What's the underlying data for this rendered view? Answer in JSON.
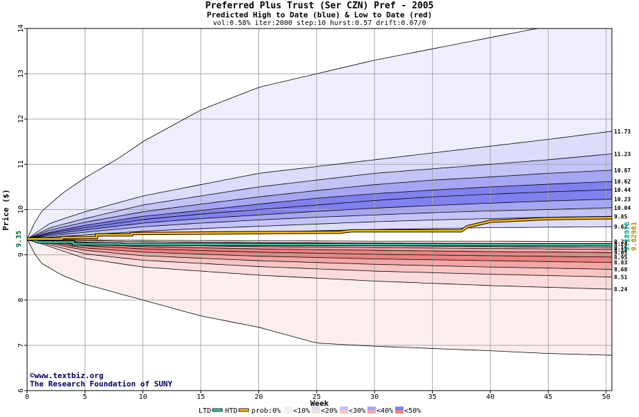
{
  "title": "Preferred Plus Trust (Ser CZN) Pref - 2005",
  "subtitle": "Predicted High to Date (blue) &  Low to Date (red)",
  "params": "vol:0.58% iter:2000 step:10 hurst:0.57 drift:0.07/0",
  "credit_line1": "©www.textbiz.org",
  "credit_line2": "The Research Foundation of SUNY",
  "colors": {
    "ltd": "#33ccaa",
    "htd": "#ffbb00",
    "blue_10": "#eeeefd",
    "blue_20": "#dcdcfb",
    "blue_30": "#c4c4f8",
    "blue_40": "#a6a6f4",
    "blue_50": "#8080ee",
    "red_10": "#fdeeee",
    "red_20": "#fbdcdc",
    "red_30": "#f8c4c4",
    "red_40": "#f4a6a6",
    "red_50": "#ee8080",
    "grid": "#a8a8a8"
  },
  "chart_data": {
    "type": "area",
    "title": "Preferred Plus Trust (Ser CZN) Pref - 2005",
    "xlabel": "Week",
    "ylabel": "Price ($)",
    "xlim": [
      0,
      50.5
    ],
    "ylim": [
      6,
      14
    ],
    "x_ticks": [
      0,
      5,
      10,
      15,
      20,
      25,
      30,
      35,
      40,
      45,
      50
    ],
    "y_ticks": [
      6,
      7,
      8,
      9,
      10,
      11,
      12,
      13,
      14
    ],
    "grid": true,
    "start_price": 9.35,
    "start_label": "9.35",
    "high_percentile_curves": [
      {
        "end": 14.2,
        "points": [
          [
            0,
            9.35
          ],
          [
            1,
            9.9
          ],
          [
            3,
            10.35
          ],
          [
            5,
            10.7
          ],
          [
            8,
            11.15
          ],
          [
            10,
            11.5
          ],
          [
            15,
            12.2
          ],
          [
            18,
            12.5
          ],
          [
            20,
            12.7
          ],
          [
            25,
            13.0
          ],
          [
            30,
            13.3
          ],
          [
            35,
            13.55
          ],
          [
            40,
            13.8
          ],
          [
            45,
            14.05
          ],
          [
            50.5,
            14.2
          ]
        ]
      },
      {
        "end": 11.73,
        "label": "11.73",
        "points": [
          [
            0,
            9.35
          ],
          [
            2,
            9.7
          ],
          [
            5,
            9.95
          ],
          [
            10,
            10.3
          ],
          [
            15,
            10.55
          ],
          [
            20,
            10.8
          ],
          [
            25,
            10.95
          ],
          [
            30,
            11.1
          ],
          [
            35,
            11.25
          ],
          [
            40,
            11.4
          ],
          [
            45,
            11.55
          ],
          [
            50.5,
            11.73
          ]
        ]
      },
      {
        "end": 11.23,
        "label": "11.23",
        "points": [
          [
            0,
            9.35
          ],
          [
            2,
            9.6
          ],
          [
            5,
            9.8
          ],
          [
            10,
            10.1
          ],
          [
            15,
            10.3
          ],
          [
            20,
            10.5
          ],
          [
            25,
            10.65
          ],
          [
            30,
            10.8
          ],
          [
            35,
            10.9
          ],
          [
            40,
            11.0
          ],
          [
            45,
            11.1
          ],
          [
            50.5,
            11.23
          ]
        ]
      },
      {
        "end": 10.87,
        "label": "10.87",
        "points": [
          [
            0,
            9.35
          ],
          [
            2,
            9.55
          ],
          [
            5,
            9.72
          ],
          [
            10,
            9.95
          ],
          [
            15,
            10.12
          ],
          [
            20,
            10.28
          ],
          [
            25,
            10.42
          ],
          [
            30,
            10.55
          ],
          [
            35,
            10.65
          ],
          [
            40,
            10.72
          ],
          [
            45,
            10.8
          ],
          [
            50.5,
            10.87
          ]
        ]
      },
      {
        "end": 10.62,
        "label": "10.62",
        "points": [
          [
            0,
            9.35
          ],
          [
            2,
            9.5
          ],
          [
            5,
            9.65
          ],
          [
            10,
            9.85
          ],
          [
            15,
            9.98
          ],
          [
            20,
            10.12
          ],
          [
            25,
            10.25
          ],
          [
            30,
            10.35
          ],
          [
            35,
            10.43
          ],
          [
            40,
            10.5
          ],
          [
            45,
            10.56
          ],
          [
            50.5,
            10.62
          ]
        ]
      },
      {
        "end": 10.44,
        "label": "10.44",
        "points": [
          [
            0,
            9.35
          ],
          [
            2,
            9.48
          ],
          [
            5,
            9.6
          ],
          [
            10,
            9.78
          ],
          [
            15,
            9.9
          ],
          [
            20,
            10.0
          ],
          [
            25,
            10.1
          ],
          [
            30,
            10.2
          ],
          [
            35,
            10.28
          ],
          [
            40,
            10.34
          ],
          [
            45,
            10.39
          ],
          [
            50.5,
            10.44
          ]
        ]
      },
      {
        "end": 10.23,
        "label": "10.23",
        "points": [
          [
            0,
            9.35
          ],
          [
            2,
            9.45
          ],
          [
            5,
            9.55
          ],
          [
            10,
            9.7
          ],
          [
            15,
            9.8
          ],
          [
            20,
            9.88
          ],
          [
            25,
            9.96
          ],
          [
            30,
            10.03
          ],
          [
            35,
            10.09
          ],
          [
            40,
            10.14
          ],
          [
            45,
            10.19
          ],
          [
            50.5,
            10.23
          ]
        ]
      },
      {
        "end": 10.04,
        "label": "10.04",
        "points": [
          [
            0,
            9.35
          ],
          [
            2,
            9.42
          ],
          [
            5,
            9.5
          ],
          [
            10,
            9.62
          ],
          [
            15,
            9.7
          ],
          [
            20,
            9.77
          ],
          [
            25,
            9.83
          ],
          [
            30,
            9.88
          ],
          [
            35,
            9.93
          ],
          [
            40,
            9.97
          ],
          [
            45,
            10.0
          ],
          [
            50.5,
            10.04
          ]
        ]
      },
      {
        "end": 9.85,
        "label": "9.85",
        "points": [
          [
            0,
            9.35
          ],
          [
            2,
            9.39
          ],
          [
            5,
            9.44
          ],
          [
            10,
            9.52
          ],
          [
            15,
            9.58
          ],
          [
            20,
            9.63
          ],
          [
            25,
            9.68
          ],
          [
            30,
            9.73
          ],
          [
            35,
            9.77
          ],
          [
            40,
            9.8
          ],
          [
            45,
            9.83
          ],
          [
            50.5,
            9.85
          ]
        ]
      },
      {
        "end": 9.62,
        "label": "9.62",
        "points": [
          [
            0,
            9.35
          ],
          [
            2,
            9.37
          ],
          [
            5,
            9.4
          ],
          [
            10,
            9.45
          ],
          [
            15,
            9.48
          ],
          [
            20,
            9.5
          ],
          [
            25,
            9.53
          ],
          [
            30,
            9.56
          ],
          [
            35,
            9.58
          ],
          [
            40,
            9.6
          ],
          [
            45,
            9.61
          ],
          [
            50.5,
            9.62
          ]
        ]
      }
    ],
    "low_percentile_curves": [
      {
        "end": 9.29,
        "label": "9.29",
        "points": [
          [
            0,
            9.35
          ],
          [
            5,
            9.33
          ],
          [
            10,
            9.32
          ],
          [
            20,
            9.31
          ],
          [
            30,
            9.3
          ],
          [
            40,
            9.3
          ],
          [
            50.5,
            9.29
          ]
        ]
      },
      {
        "end": 9.24,
        "label": "9.24",
        "points": [
          [
            0,
            9.35
          ],
          [
            5,
            9.31
          ],
          [
            10,
            9.29
          ],
          [
            20,
            9.27
          ],
          [
            30,
            9.26
          ],
          [
            40,
            9.25
          ],
          [
            50.5,
            9.24
          ]
        ]
      },
      {
        "end": 9.16,
        "label": "9.16",
        "points": [
          [
            0,
            9.35
          ],
          [
            5,
            9.28
          ],
          [
            10,
            9.25
          ],
          [
            20,
            9.22
          ],
          [
            30,
            9.2
          ],
          [
            40,
            9.18
          ],
          [
            50.5,
            9.16
          ]
        ]
      },
      {
        "end": 9.12,
        "label": "9.12",
        "points": [
          [
            0,
            9.35
          ],
          [
            5,
            9.26
          ],
          [
            10,
            9.22
          ],
          [
            20,
            9.18
          ],
          [
            30,
            9.16
          ],
          [
            40,
            9.14
          ],
          [
            50.5,
            9.12
          ]
        ]
      },
      {
        "end": 9.05,
        "label": "9.05",
        "points": [
          [
            0,
            9.35
          ],
          [
            5,
            9.24
          ],
          [
            10,
            9.18
          ],
          [
            20,
            9.13
          ],
          [
            30,
            9.1
          ],
          [
            40,
            9.07
          ],
          [
            50.5,
            9.05
          ]
        ]
      },
      {
        "end": 8.95,
        "label": "8.95",
        "points": [
          [
            0,
            9.35
          ],
          [
            5,
            9.2
          ],
          [
            10,
            9.13
          ],
          [
            20,
            9.06
          ],
          [
            30,
            9.01
          ],
          [
            40,
            8.98
          ],
          [
            50.5,
            8.95
          ]
        ]
      },
      {
        "end": 8.83,
        "label": "8.83",
        "points": [
          [
            0,
            9.35
          ],
          [
            5,
            9.15
          ],
          [
            10,
            9.06
          ],
          [
            20,
            8.97
          ],
          [
            30,
            8.91
          ],
          [
            40,
            8.87
          ],
          [
            50.5,
            8.83
          ]
        ]
      },
      {
        "end": 8.68,
        "label": "8.68",
        "points": [
          [
            0,
            9.35
          ],
          [
            5,
            9.1
          ],
          [
            10,
            8.98
          ],
          [
            20,
            8.87
          ],
          [
            30,
            8.79
          ],
          [
            40,
            8.73
          ],
          [
            50.5,
            8.68
          ]
        ]
      },
      {
        "end": 8.51,
        "label": "8.51",
        "points": [
          [
            0,
            9.35
          ],
          [
            5,
            9.02
          ],
          [
            10,
            8.88
          ],
          [
            20,
            8.74
          ],
          [
            30,
            8.64
          ],
          [
            40,
            8.57
          ],
          [
            50.5,
            8.51
          ]
        ]
      },
      {
        "end": 8.24,
        "label": "8.24",
        "points": [
          [
            0,
            9.35
          ],
          [
            5,
            8.92
          ],
          [
            10,
            8.73
          ],
          [
            20,
            8.55
          ],
          [
            30,
            8.42
          ],
          [
            40,
            8.32
          ],
          [
            50.5,
            8.24
          ]
        ]
      },
      {
        "end": 6.78,
        "points": [
          [
            0,
            9.35
          ],
          [
            1,
            8.85
          ],
          [
            3,
            8.55
          ],
          [
            5,
            8.35
          ],
          [
            10,
            8.0
          ],
          [
            15,
            7.65
          ],
          [
            20,
            7.4
          ],
          [
            25,
            7.05
          ],
          [
            30,
            6.98
          ],
          [
            35,
            6.93
          ],
          [
            40,
            6.88
          ],
          [
            45,
            6.82
          ],
          [
            50.5,
            6.78
          ]
        ]
      }
    ],
    "series": [
      {
        "name": "LTD",
        "color": "#33ccaa",
        "points": [
          [
            0,
            9.35
          ],
          [
            0.5,
            9.33
          ],
          [
            1,
            9.28
          ],
          [
            4,
            9.28
          ],
          [
            4,
            9.24
          ],
          [
            8,
            9.24
          ],
          [
            8,
            9.23
          ],
          [
            50.5,
            9.22
          ]
        ]
      },
      {
        "name": "HTD",
        "color": "#ffbb00",
        "points": [
          [
            0,
            9.35
          ],
          [
            3,
            9.35
          ],
          [
            3,
            9.38
          ],
          [
            6,
            9.38
          ],
          [
            6,
            9.44
          ],
          [
            9,
            9.44
          ],
          [
            9,
            9.47
          ],
          [
            15,
            9.48
          ],
          [
            27,
            9.5
          ],
          [
            28,
            9.53
          ],
          [
            37.5,
            9.53
          ],
          [
            38,
            9.62
          ],
          [
            39,
            9.68
          ],
          [
            40,
            9.74
          ],
          [
            45,
            9.8
          ],
          [
            50.5,
            9.82
          ]
        ]
      }
    ],
    "right_axis_values": [
      "9.18976",
      "9.82981"
    ],
    "legend": {
      "placement": "bottom",
      "items": [
        "LTD",
        "HTD",
        "prob:0%",
        "<10%",
        "<20%",
        "<30%",
        "<40%",
        "<50%"
      ]
    }
  }
}
